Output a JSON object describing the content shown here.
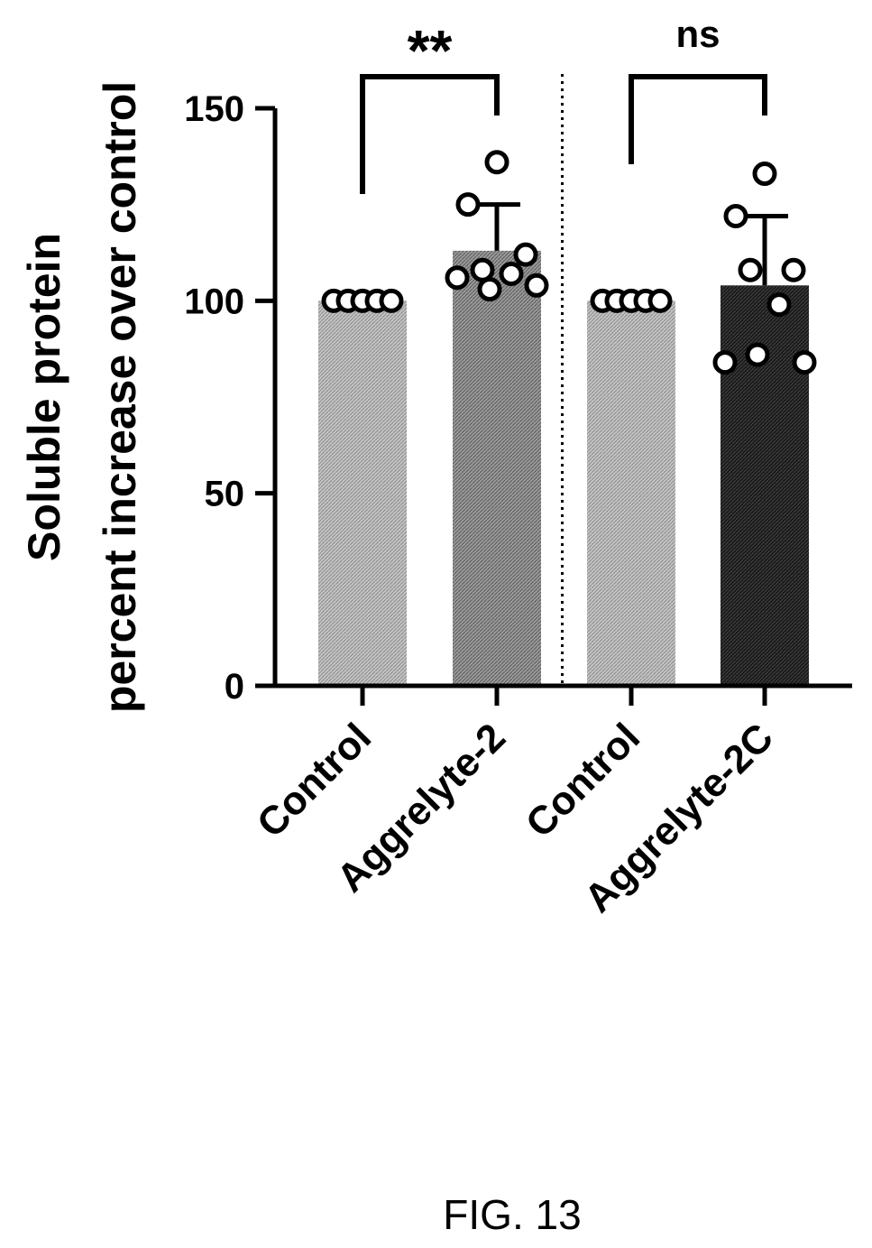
{
  "figure_label": "FIG. 13",
  "chart_data": {
    "type": "bar",
    "ylabel_line1": "Soluble protein",
    "ylabel_line2": "percent increase over control",
    "xlabel": "",
    "ylim": [
      0,
      150
    ],
    "yticks": [
      0,
      50,
      100,
      150
    ],
    "grid": false,
    "categories": [
      "Control",
      "Aggrelyte-2",
      "Control",
      "Aggrelyte-2C"
    ],
    "values": [
      100,
      113,
      100,
      104
    ],
    "error_upper": [
      0,
      12,
      0,
      18
    ],
    "bar_styles": [
      "light",
      "medium",
      "light",
      "dark"
    ],
    "points": [
      [
        100,
        100,
        100,
        100,
        100
      ],
      [
        136,
        125,
        112,
        108,
        107,
        106,
        104,
        103
      ],
      [
        100,
        100,
        100,
        100,
        100
      ],
      [
        133,
        122,
        108,
        108,
        99,
        84,
        84,
        86
      ]
    ],
    "group_divider_after_index": 1,
    "significance": [
      {
        "from": 0,
        "to": 1,
        "label": "**"
      },
      {
        "from": 2,
        "to": 3,
        "label": "ns"
      }
    ]
  }
}
